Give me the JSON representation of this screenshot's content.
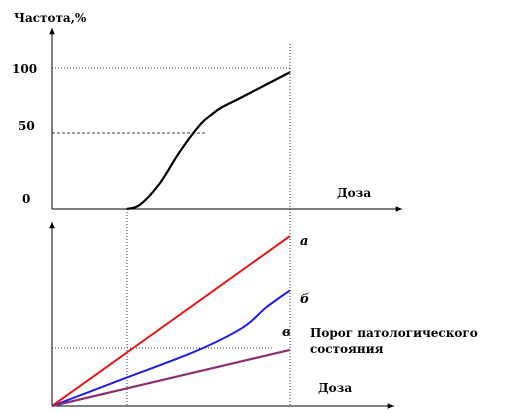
{
  "chart_data": [
    {
      "type": "line",
      "ylabel": "Частота,%",
      "xlabel": "Доза",
      "yticks": [
        "100",
        "50",
        "0"
      ],
      "ylim": [
        0,
        100
      ],
      "series": [
        {
          "color": "#000000",
          "x": [
            0,
            0.08,
            0.2,
            0.32,
            0.45,
            0.52,
            0.58,
            0.7,
            0.85,
            1.0
          ],
          "y": [
            0,
            3,
            18,
            40,
            60,
            67,
            72,
            79,
            88,
            97
          ]
        }
      ],
      "guides": {
        "level": 50
      }
    },
    {
      "type": "line",
      "xlabel": "Доза",
      "threshold_label": "Порог патологического состояния",
      "ylim": [
        0,
        100
      ],
      "series": [
        {
          "name": "а",
          "color": "#e81818",
          "x": [
            0,
            1
          ],
          "y": [
            0,
            100
          ]
        },
        {
          "name": "б",
          "color": "#1e1ee0",
          "x": [
            0,
            0.3,
            0.6,
            0.8,
            0.9,
            1.0
          ],
          "y": [
            0,
            16,
            32,
            46,
            58,
            68
          ]
        },
        {
          "name": "в",
          "color": "#8a3070",
          "x": [
            0,
            1
          ],
          "y": [
            0,
            33
          ]
        }
      ]
    }
  ]
}
